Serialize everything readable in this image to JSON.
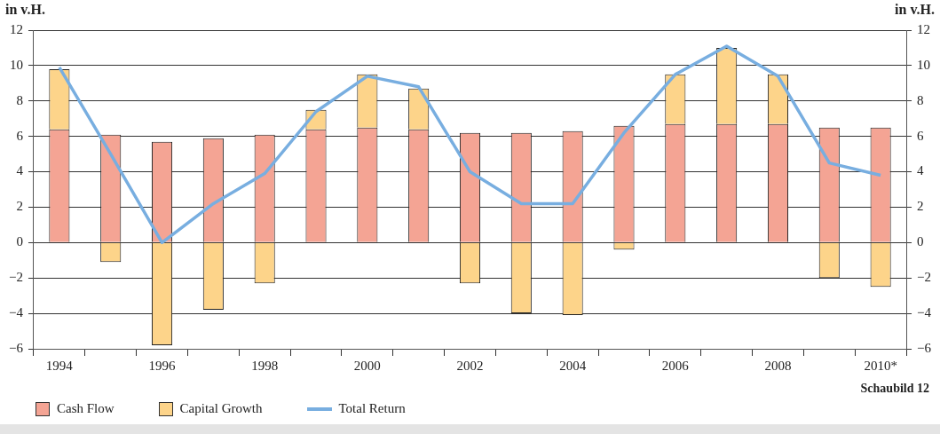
{
  "chart_data": {
    "type": "bar",
    "stacked": true,
    "categories": [
      "1994",
      null,
      "1996",
      null,
      "1998",
      null,
      "2000",
      null,
      "2002",
      null,
      "2004",
      null,
      "2006",
      null,
      "2008",
      null,
      "2010*"
    ],
    "series": [
      {
        "name": "Cash Flow",
        "color": "#f4a494",
        "values": [
          6.4,
          6.1,
          5.7,
          5.9,
          6.1,
          6.4,
          6.5,
          6.4,
          6.2,
          6.2,
          6.3,
          6.6,
          6.7,
          6.7,
          6.7,
          6.5,
          6.5
        ]
      },
      {
        "name": "Capital Growth",
        "color": "#fdd48a",
        "values": [
          3.4,
          -1.1,
          -5.8,
          -3.8,
          -2.3,
          1.1,
          3.0,
          2.3,
          -2.3,
          -4.0,
          -4.1,
          -0.4,
          2.8,
          4.3,
          2.8,
          -2.0,
          -2.5
        ]
      },
      {
        "name": "Total Return",
        "type": "line",
        "color": "#78aee0",
        "values": [
          9.9,
          5.0,
          0.0,
          2.2,
          3.9,
          7.4,
          9.4,
          8.8,
          4.0,
          2.2,
          2.2,
          6.2,
          9.5,
          11.1,
          9.4,
          4.5,
          3.8
        ]
      }
    ],
    "ylabel": "in v.H.",
    "y2label": "in v.H.",
    "ylim": [
      -6,
      12
    ],
    "yticks": [
      -6,
      -4,
      -2,
      0,
      2,
      4,
      6,
      8,
      10,
      12
    ],
    "y2lim": [
      -6,
      12
    ],
    "y2ticks": [
      -6,
      -4,
      -2,
      0,
      2,
      4,
      6,
      8,
      10,
      12
    ],
    "grid": "y",
    "legend": "bottom left",
    "marker": "none",
    "annotations": [
      "Schaubild 12"
    ]
  }
}
